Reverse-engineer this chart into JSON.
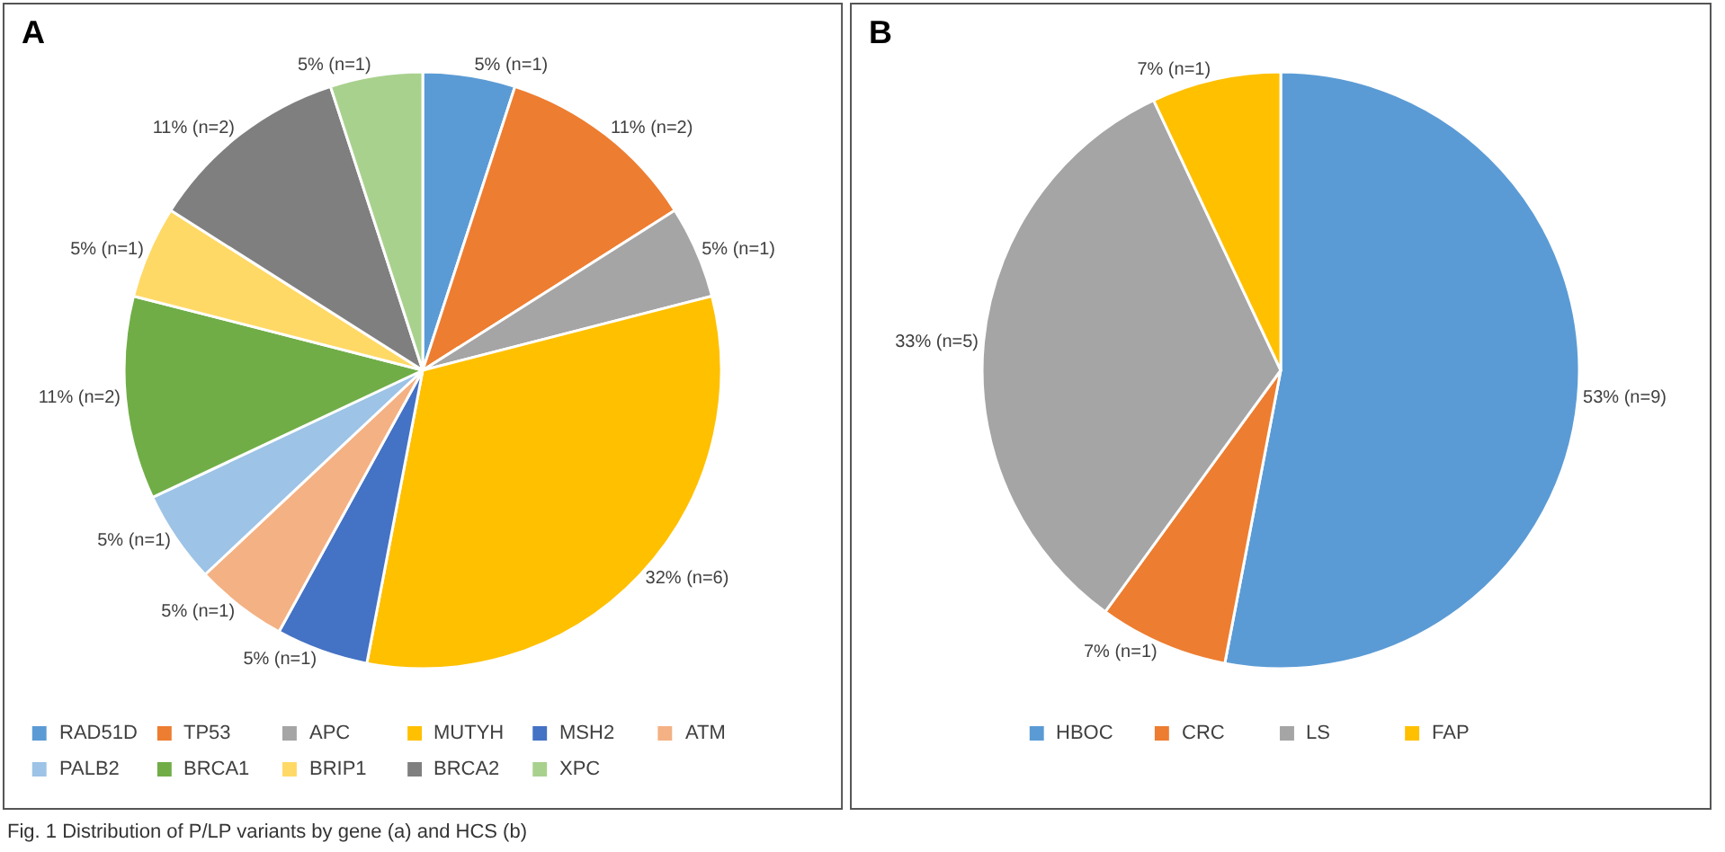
{
  "chart_data": [
    {
      "type": "pie",
      "title": "A",
      "categories": [
        "RAD51D",
        "TP53",
        "APC",
        "MUTYH",
        "MSH2",
        "ATM",
        "PALB2",
        "BRCA1",
        "BRIP1",
        "BRCA2",
        "XPC"
      ],
      "values": [
        5,
        11,
        5,
        32,
        5,
        5,
        5,
        11,
        5,
        11,
        5
      ],
      "value_labels": [
        "5% (n=1)",
        "11% (n=2)",
        "5% (n=1)",
        "32% (n=6)",
        "5% (n=1)",
        "5% (n=1)",
        "5% (n=1)",
        "11% (n=2)",
        "5% (n=1)",
        "11% (n=2)",
        "5% (n=1)"
      ],
      "colors": [
        "#5b9bd5",
        "#ed7d31",
        "#a5a5a5",
        "#ffc000",
        "#4472c4",
        "#f4b183",
        "#9dc3e6",
        "#70ad47",
        "#ffd966",
        "#7f7f7f",
        "#a9d18e"
      ],
      "legend": "bottom",
      "annotations": [
        "Fig. 1 Distribution of P/LP variants by gene (a) and HCS (b)"
      ]
    },
    {
      "type": "pie",
      "title": "B",
      "categories": [
        "HBOC",
        "CRC",
        "LS",
        "FAP"
      ],
      "values": [
        53,
        7,
        33,
        7
      ],
      "value_labels": [
        "53% (n=9)",
        "7% (n=1)",
        "33% (n=5)",
        "7% (n=1)"
      ],
      "colors": [
        "#5b9bd5",
        "#ed7d31",
        "#a5a5a5",
        "#ffc000"
      ],
      "legend": "bottom"
    }
  ]
}
